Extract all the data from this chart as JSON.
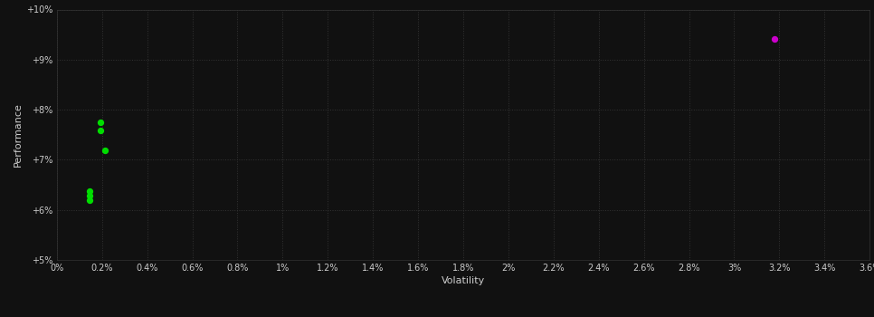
{
  "background_color": "#111111",
  "plot_bg_color": "#111111",
  "grid_color": "#333333",
  "text_color": "#cccccc",
  "xlabel": "Volatility",
  "ylabel": "Performance",
  "xlim": [
    0.0,
    0.036
  ],
  "ylim": [
    0.05,
    0.1
  ],
  "x_ticks": [
    0.0,
    0.002,
    0.004,
    0.006,
    0.008,
    0.01,
    0.012,
    0.014,
    0.016,
    0.018,
    0.02,
    0.022,
    0.024,
    0.026,
    0.028,
    0.03,
    0.032,
    0.034,
    0.036
  ],
  "x_tick_labels": [
    "0%",
    "0.2%",
    "0.4%",
    "0.6%",
    "0.8%",
    "1%",
    "1.2%",
    "1.4%",
    "1.6%",
    "1.8%",
    "2%",
    "2.2%",
    "2.4%",
    "2.6%",
    "2.8%",
    "3%",
    "3.2%",
    "3.4%",
    "3.6%"
  ],
  "y_ticks": [
    0.05,
    0.06,
    0.07,
    0.08,
    0.09,
    0.1
  ],
  "y_tick_labels": [
    "+5%",
    "+6%",
    "+7%",
    "+8%",
    "+9%",
    "+10%"
  ],
  "green_points": [
    [
      0.00195,
      0.0775
    ],
    [
      0.00195,
      0.0758
    ],
    [
      0.00215,
      0.0718
    ],
    [
      0.00145,
      0.0638
    ],
    [
      0.00145,
      0.0628
    ],
    [
      0.00145,
      0.062
    ]
  ],
  "magenta_points": [
    [
      0.0318,
      0.0942
    ]
  ],
  "green_color": "#00dd00",
  "magenta_color": "#cc00cc",
  "marker_size": 18
}
